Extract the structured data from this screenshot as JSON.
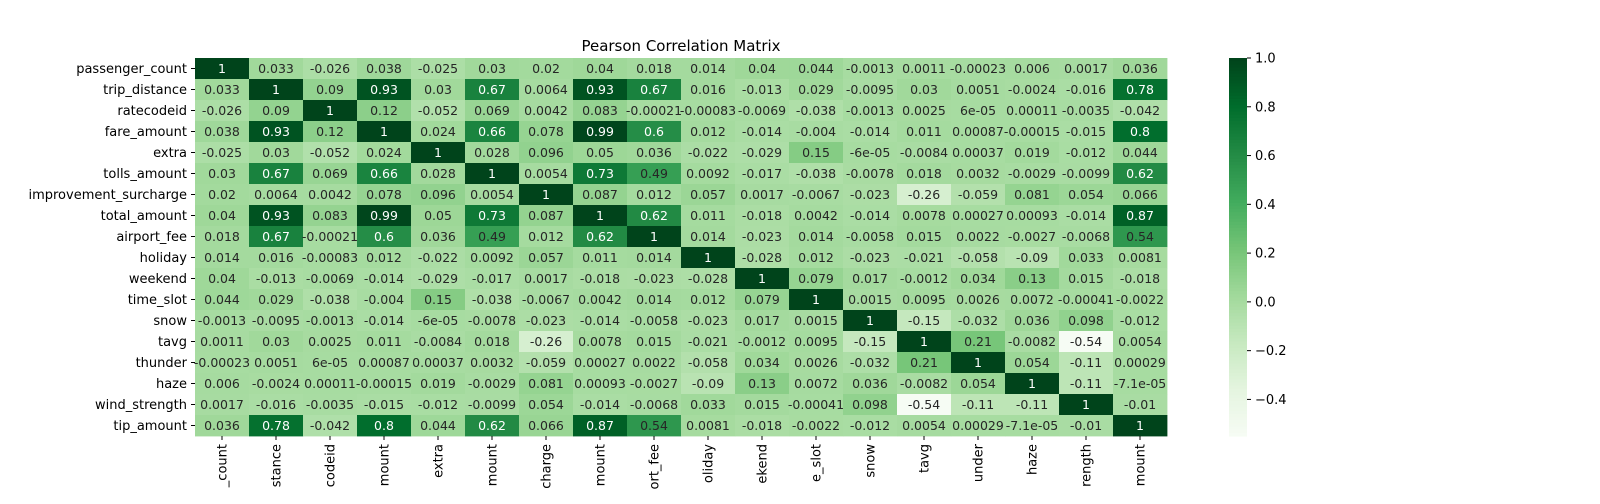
{
  "chart_data": {
    "type": "heatmap",
    "title": "Pearson Correlation Matrix",
    "row_labels": [
      "passenger_count",
      "trip_distance",
      "ratecodeid",
      "fare_amount",
      "extra",
      "tolls_amount",
      "improvement_surcharge",
      "total_amount",
      "airport_fee",
      "holiday",
      "weekend",
      "time_slot",
      "snow",
      "tavg",
      "thunder",
      "haze",
      "wind_strength",
      "tip_amount"
    ],
    "col_labels_visible": [
      "_count",
      "stance",
      "codeid",
      "mount",
      "extra",
      "mount",
      "charge",
      "mount",
      "ort_fee",
      "oliday",
      "ekend",
      "e_slot",
      "snow",
      "tavg",
      "under",
      "haze",
      "rength",
      "mount"
    ],
    "colorbar": {
      "min": -0.55,
      "max": 1.0,
      "ticks": [
        1.0,
        0.8,
        0.6,
        0.4,
        0.2,
        0.0,
        -0.2,
        -0.4
      ],
      "tick_labels": [
        "1.0",
        "0.8",
        "0.6",
        "0.4",
        "0.2",
        "0.0",
        "−0.2",
        "−0.4"
      ],
      "colormap": "Greens",
      "color_stops": [
        "#f7fcf5",
        "#e5f5e0",
        "#c7e9c0",
        "#a1d99b",
        "#74c476",
        "#41ab5d",
        "#238b45",
        "#006d2c",
        "#00441b"
      ]
    },
    "values": [
      [
        1,
        0.033,
        -0.026,
        0.038,
        -0.025,
        0.03,
        0.02,
        0.04,
        0.018,
        0.014,
        0.04,
        0.044,
        -0.0013,
        0.0011,
        -0.00023,
        0.006,
        0.0017,
        0.036
      ],
      [
        0.033,
        1,
        0.09,
        0.93,
        0.03,
        0.67,
        0.0064,
        0.93,
        0.67,
        0.016,
        -0.013,
        0.029,
        -0.0095,
        0.03,
        0.0051,
        -0.0024,
        -0.016,
        0.78
      ],
      [
        -0.026,
        0.09,
        1,
        0.12,
        -0.052,
        0.069,
        0.0042,
        0.083,
        -0.00021,
        -0.00083,
        -0.0069,
        -0.038,
        -0.0013,
        0.0025,
        6e-05,
        0.00011,
        -0.0035,
        -0.042
      ],
      [
        0.038,
        0.93,
        0.12,
        1,
        0.024,
        0.66,
        0.078,
        0.99,
        0.6,
        0.012,
        -0.014,
        -0.004,
        -0.014,
        0.011,
        0.00087,
        -0.00015,
        -0.015,
        0.8
      ],
      [
        -0.025,
        0.03,
        -0.052,
        0.024,
        1,
        0.028,
        0.096,
        0.05,
        0.036,
        -0.022,
        -0.029,
        0.15,
        -6e-05,
        -0.0084,
        0.00037,
        0.019,
        -0.012,
        0.044
      ],
      [
        0.03,
        0.67,
        0.069,
        0.66,
        0.028,
        1,
        0.0054,
        0.73,
        0.49,
        0.0092,
        -0.017,
        -0.038,
        -0.0078,
        0.018,
        0.0032,
        -0.0029,
        -0.0099,
        0.62
      ],
      [
        0.02,
        0.0064,
        0.0042,
        0.078,
        0.096,
        0.0054,
        1,
        0.087,
        0.012,
        0.057,
        0.0017,
        -0.0067,
        -0.023,
        -0.26,
        -0.059,
        0.081,
        0.054,
        0.066
      ],
      [
        0.04,
        0.93,
        0.083,
        0.99,
        0.05,
        0.73,
        0.087,
        1,
        0.62,
        0.011,
        -0.018,
        0.0042,
        -0.014,
        0.0078,
        0.00027,
        0.00093,
        -0.014,
        0.87
      ],
      [
        0.018,
        0.67,
        -0.00021,
        0.6,
        0.036,
        0.49,
        0.012,
        0.62,
        1,
        0.014,
        -0.023,
        0.014,
        -0.0058,
        0.015,
        0.0022,
        -0.0027,
        -0.0068,
        0.54
      ],
      [
        0.014,
        0.016,
        -0.00083,
        0.012,
        -0.022,
        0.0092,
        0.057,
        0.011,
        0.014,
        1,
        -0.028,
        0.012,
        -0.023,
        -0.021,
        -0.058,
        -0.09,
        0.033,
        0.0081
      ],
      [
        0.04,
        -0.013,
        -0.0069,
        -0.014,
        -0.029,
        -0.017,
        0.0017,
        -0.018,
        -0.023,
        -0.028,
        1,
        0.079,
        0.017,
        -0.0012,
        0.034,
        0.13,
        0.015,
        -0.018
      ],
      [
        0.044,
        0.029,
        -0.038,
        -0.004,
        0.15,
        -0.038,
        -0.0067,
        0.0042,
        0.014,
        0.012,
        0.079,
        1,
        0.0015,
        0.0095,
        0.0026,
        0.0072,
        -0.00041,
        -0.0022
      ],
      [
        -0.0013,
        -0.0095,
        -0.0013,
        -0.014,
        -6e-05,
        -0.0078,
        -0.023,
        -0.014,
        -0.0058,
        -0.023,
        0.017,
        0.0015,
        1,
        -0.15,
        -0.032,
        0.036,
        0.098,
        -0.012
      ],
      [
        0.0011,
        0.03,
        0.0025,
        0.011,
        -0.0084,
        0.018,
        -0.26,
        0.0078,
        0.015,
        -0.021,
        -0.0012,
        0.0095,
        -0.15,
        1,
        0.21,
        -0.0082,
        -0.54,
        0.0054
      ],
      [
        -0.00023,
        0.0051,
        6e-05,
        0.00087,
        0.00037,
        0.0032,
        -0.059,
        0.00027,
        0.0022,
        -0.058,
        0.034,
        0.0026,
        -0.032,
        0.21,
        1,
        0.054,
        -0.11,
        0.00029
      ],
      [
        0.006,
        -0.0024,
        0.00011,
        -0.00015,
        0.019,
        -0.0029,
        0.081,
        0.00093,
        -0.0027,
        -0.09,
        0.13,
        0.0072,
        0.036,
        -0.0082,
        0.054,
        1,
        -0.11,
        -7.1e-05
      ],
      [
        0.0017,
        -0.016,
        -0.0035,
        -0.015,
        -0.012,
        -0.0099,
        0.054,
        -0.014,
        -0.0068,
        0.033,
        0.015,
        -0.00041,
        0.098,
        -0.54,
        -0.11,
        -0.11,
        1,
        -0.01
      ],
      [
        0.036,
        0.78,
        -0.042,
        0.8,
        0.044,
        0.62,
        0.066,
        0.87,
        0.54,
        0.0081,
        -0.018,
        -0.0022,
        -0.012,
        0.0054,
        0.00029,
        -7.1e-05,
        -0.01,
        1
      ]
    ],
    "annotations": [
      [
        "1",
        "0.033",
        "-0.026",
        "0.038",
        "-0.025",
        "0.03",
        "0.02",
        "0.04",
        "0.018",
        "0.014",
        "0.04",
        "0.044",
        "-0.0013",
        "0.0011",
        "-0.00023",
        "0.006",
        "0.0017",
        "0.036"
      ],
      [
        "0.033",
        "1",
        "0.09",
        "0.93",
        "0.03",
        "0.67",
        "0.0064",
        "0.93",
        "0.67",
        "0.016",
        "-0.013",
        "0.029",
        "-0.0095",
        "0.03",
        "0.0051",
        "-0.0024",
        "-0.016",
        "0.78"
      ],
      [
        "-0.026",
        "0.09",
        "1",
        "0.12",
        "-0.052",
        "0.069",
        "0.0042",
        "0.083",
        "-0.00021",
        "-0.00083",
        "-0.0069",
        "-0.038",
        "-0.0013",
        "0.0025",
        "6e-05",
        "0.00011",
        "-0.0035",
        "-0.042"
      ],
      [
        "0.038",
        "0.93",
        "0.12",
        "1",
        "0.024",
        "0.66",
        "0.078",
        "0.99",
        "0.6",
        "0.012",
        "-0.014",
        "-0.004",
        "-0.014",
        "0.011",
        "0.00087",
        "-0.00015",
        "-0.015",
        "0.8"
      ],
      [
        "-0.025",
        "0.03",
        "-0.052",
        "0.024",
        "1",
        "0.028",
        "0.096",
        "0.05",
        "0.036",
        "-0.022",
        "-0.029",
        "0.15",
        "-6e-05",
        "-0.0084",
        "0.00037",
        "0.019",
        "-0.012",
        "0.044"
      ],
      [
        "0.03",
        "0.67",
        "0.069",
        "0.66",
        "0.028",
        "1",
        "0.0054",
        "0.73",
        "0.49",
        "0.0092",
        "-0.017",
        "-0.038",
        "-0.0078",
        "0.018",
        "0.0032",
        "-0.0029",
        "-0.0099",
        "0.62"
      ],
      [
        "0.02",
        "0.0064",
        "0.0042",
        "0.078",
        "0.096",
        "0.0054",
        "1",
        "0.087",
        "0.012",
        "0.057",
        "0.0017",
        "-0.0067",
        "-0.023",
        "-0.26",
        "-0.059",
        "0.081",
        "0.054",
        "0.066"
      ],
      [
        "0.04",
        "0.93",
        "0.083",
        "0.99",
        "0.05",
        "0.73",
        "0.087",
        "1",
        "0.62",
        "0.011",
        "-0.018",
        "0.0042",
        "-0.014",
        "0.0078",
        "0.00027",
        "0.00093",
        "-0.014",
        "0.87"
      ],
      [
        "0.018",
        "0.67",
        "-0.00021",
        "0.6",
        "0.036",
        "0.49",
        "0.012",
        "0.62",
        "1",
        "0.014",
        "-0.023",
        "0.014",
        "-0.0058",
        "0.015",
        "0.0022",
        "-0.0027",
        "-0.0068",
        "0.54"
      ],
      [
        "0.014",
        "0.016",
        "-0.00083",
        "0.012",
        "-0.022",
        "0.0092",
        "0.057",
        "0.011",
        "0.014",
        "1",
        "-0.028",
        "0.012",
        "-0.023",
        "-0.021",
        "-0.058",
        "-0.09",
        "0.033",
        "0.0081"
      ],
      [
        "0.04",
        "-0.013",
        "-0.0069",
        "-0.014",
        "-0.029",
        "-0.017",
        "0.0017",
        "-0.018",
        "-0.023",
        "-0.028",
        "1",
        "0.079",
        "0.017",
        "-0.0012",
        "0.034",
        "0.13",
        "0.015",
        "-0.018"
      ],
      [
        "0.044",
        "0.029",
        "-0.038",
        "-0.004",
        "0.15",
        "-0.038",
        "-0.0067",
        "0.0042",
        "0.014",
        "0.012",
        "0.079",
        "1",
        "0.0015",
        "0.0095",
        "0.0026",
        "0.0072",
        "-0.00041",
        "-0.0022"
      ],
      [
        "-0.0013",
        "-0.0095",
        "-0.0013",
        "-0.014",
        "-6e-05",
        "-0.0078",
        "-0.023",
        "-0.014",
        "-0.0058",
        "-0.023",
        "0.017",
        "0.0015",
        "1",
        "-0.15",
        "-0.032",
        "0.036",
        "0.098",
        "-0.012"
      ],
      [
        "0.0011",
        "0.03",
        "0.0025",
        "0.011",
        "-0.0084",
        "0.018",
        "-0.26",
        "0.0078",
        "0.015",
        "-0.021",
        "-0.0012",
        "0.0095",
        "-0.15",
        "1",
        "0.21",
        "-0.0082",
        "-0.54",
        "0.0054"
      ],
      [
        "-0.00023",
        "0.0051",
        "6e-05",
        "0.00087",
        "0.00037",
        "0.0032",
        "-0.059",
        "0.00027",
        "0.0022",
        "-0.058",
        "0.034",
        "0.0026",
        "-0.032",
        "0.21",
        "1",
        "0.054",
        "-0.11",
        "0.00029"
      ],
      [
        "0.006",
        "-0.0024",
        "0.00011",
        "-0.00015",
        "0.019",
        "-0.0029",
        "0.081",
        "0.00093",
        "-0.0027",
        "-0.09",
        "0.13",
        "0.0072",
        "0.036",
        "-0.0082",
        "0.054",
        "1",
        "-0.11",
        "-7.1e-05"
      ],
      [
        "0.0017",
        "-0.016",
        "-0.0035",
        "-0.015",
        "-0.012",
        "-0.0099",
        "0.054",
        "-0.014",
        "-0.0068",
        "0.033",
        "0.015",
        "-0.00041",
        "0.098",
        "-0.54",
        "-0.11",
        "-0.11",
        "1",
        "-0.01"
      ],
      [
        "0.036",
        "0.78",
        "-0.042",
        "0.8",
        "0.044",
        "0.62",
        "0.066",
        "0.87",
        "0.54",
        "0.0081",
        "-0.018",
        "-0.0022",
        "-0.012",
        "0.0054",
        "0.00029",
        "-7.1e-05",
        "-0.01",
        "1"
      ]
    ]
  }
}
